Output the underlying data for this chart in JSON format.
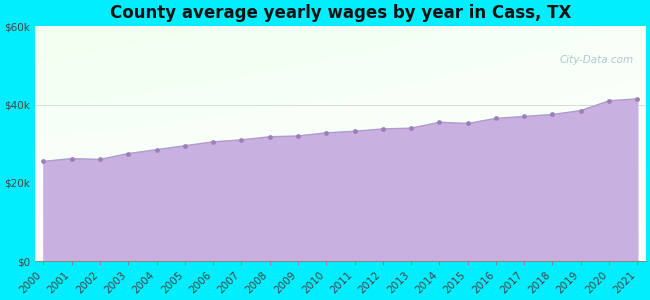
{
  "title": "County average yearly wages by year in Cass, TX",
  "years": [
    2000,
    2001,
    2002,
    2003,
    2004,
    2005,
    2006,
    2007,
    2008,
    2009,
    2010,
    2011,
    2012,
    2013,
    2014,
    2015,
    2016,
    2017,
    2018,
    2019,
    2020,
    2021
  ],
  "wages": [
    25500,
    26200,
    26000,
    27500,
    28500,
    29500,
    30500,
    31000,
    31800,
    32000,
    32800,
    33200,
    33800,
    34000,
    35500,
    35200,
    36500,
    37000,
    37500,
    38500,
    41000,
    41500
  ],
  "ylim": [
    0,
    60000
  ],
  "yticks": [
    0,
    20000,
    40000,
    60000
  ],
  "ytick_labels": [
    "$0",
    "$20k",
    "$40k",
    "$60k"
  ],
  "line_color": "#b09ccc",
  "fill_color_top": "#c8b0e0",
  "fill_color_bottom": "#d0bce8",
  "marker_color": "#9b80b8",
  "bg_outer_color": "#00eeff",
  "bg_inner_top_left": "#e8fef0",
  "bg_inner_top_right": "#f8ffff",
  "bg_inner_bottom": "#e8f8f8",
  "grid_color": "#cccccc",
  "watermark_text": "City-Data.com",
  "title_fontsize": 12,
  "tick_fontsize": 7.5
}
